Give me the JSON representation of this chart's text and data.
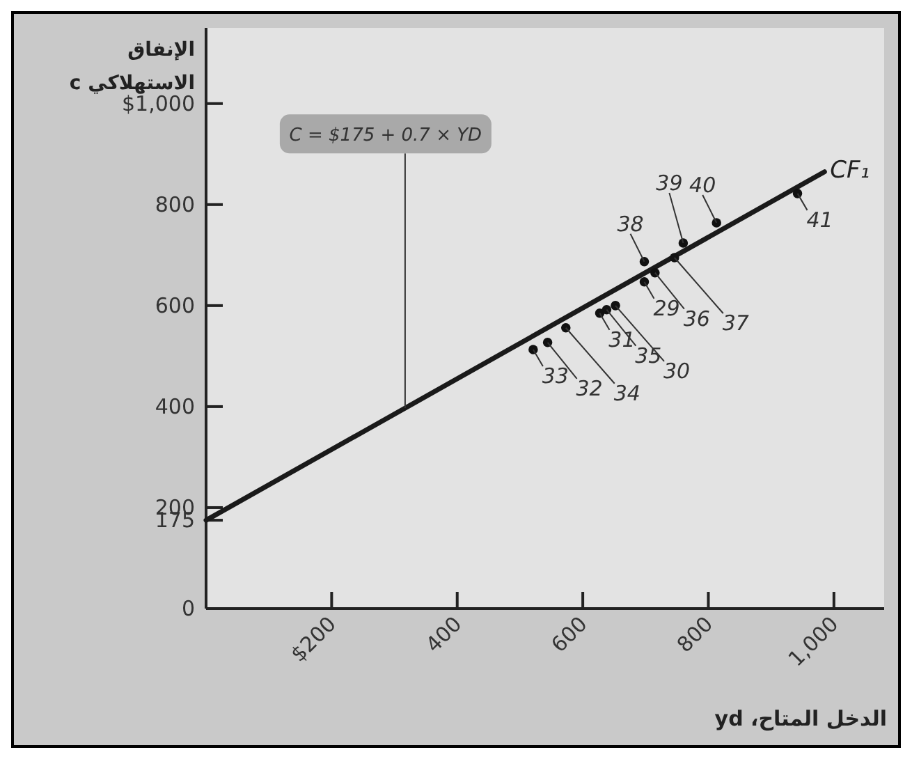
{
  "chart_data": {
    "type": "scatter",
    "xlabel": "الدخل المتاح، yd",
    "ylabel": "الإنفاق الاستهلاكي c",
    "xlim": [
      0,
      1080
    ],
    "ylim": [
      0,
      1150
    ],
    "xticks": [
      {
        "value": 200,
        "label": "$200"
      },
      400,
      600,
      800,
      {
        "value": 1000,
        "label": "1,000"
      }
    ],
    "yticks": [
      0,
      175,
      200,
      400,
      600,
      800,
      {
        "value": 1000,
        "label": "$1,000"
      }
    ],
    "grid": false,
    "marker": "circle",
    "series": [
      {
        "color": "#111111",
        "x": [
          521,
          544,
          573,
          627,
          638,
          652,
          698,
          698,
          715,
          746,
          760,
          813,
          942
        ],
        "values": [
          513,
          527,
          556,
          585,
          592,
          600,
          647,
          687,
          665,
          695,
          724,
          764,
          822
        ]
      },
      {
        "type": "line",
        "name": "CF₁",
        "color": "#1a1a1a",
        "marker": "none",
        "x": [
          0,
          985
        ],
        "values": [
          175,
          865
        ]
      }
    ],
    "annotations": [
      {
        "text": "C = $175 + 0.7 × YD",
        "x": 317,
        "y": 397
      },
      {
        "text": "33",
        "x": 521,
        "y": 513
      },
      {
        "text": "32",
        "x": 544,
        "y": 527
      },
      {
        "text": "34",
        "x": 573,
        "y": 556
      },
      {
        "text": "31",
        "x": 627,
        "y": 585
      },
      {
        "text": "35",
        "x": 638,
        "y": 592
      },
      {
        "text": "30",
        "x": 652,
        "y": 600
      },
      {
        "text": "29",
        "x": 698,
        "y": 647
      },
      {
        "text": "38",
        "x": 698,
        "y": 687
      },
      {
        "text": "36",
        "x": 715,
        "y": 665
      },
      {
        "text": "37",
        "x": 746,
        "y": 695
      },
      {
        "text": "39",
        "x": 760,
        "y": 724
      },
      {
        "text": "40",
        "x": 813,
        "y": 764
      },
      {
        "text": "41",
        "x": 942,
        "y": 822
      }
    ]
  }
}
